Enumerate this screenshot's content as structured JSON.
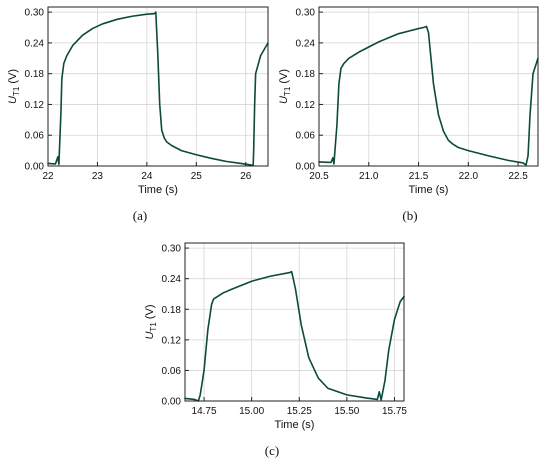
{
  "figure": {
    "panel_labels": [
      "(a)",
      "(b)",
      "(c)"
    ]
  },
  "colors": {
    "line": "#0b4a3c",
    "grid": "#d6d6d6",
    "axis": "#222222",
    "background": "#ffffff"
  },
  "chart_data": [
    {
      "type": "line",
      "panel": "(a)",
      "ylabel_main": "U",
      "ylabel_sub": "T1",
      "ylabel_unit": " (V)",
      "xlabel": "Time (s)",
      "xlim": [
        22.0,
        26.45
      ],
      "ylim": [
        0.0,
        0.31
      ],
      "xticks": [
        22,
        23,
        24,
        25,
        26
      ],
      "xtick_labels": [
        "22",
        "23",
        "24",
        "25",
        "26"
      ],
      "yticks": [
        0.0,
        0.06,
        0.12,
        0.18,
        0.24,
        0.3
      ],
      "ytick_labels": [
        "0.00",
        "0.06",
        "0.12",
        "0.18",
        "0.24",
        "0.30"
      ],
      "grid": true,
      "series": [
        {
          "x": [
            22.0,
            22.15,
            22.2,
            22.22,
            22.26,
            22.28,
            22.32,
            22.38,
            22.5,
            22.7,
            22.9,
            23.1,
            23.4,
            23.7,
            24.0,
            24.15,
            24.18,
            24.22,
            24.26,
            24.3,
            24.35,
            24.4,
            24.5,
            24.7,
            25.0,
            25.3,
            25.6,
            25.9,
            26.1,
            26.15,
            26.16,
            26.18,
            26.2,
            26.3,
            26.45
          ],
          "y": [
            0.005,
            0.004,
            0.018,
            0.003,
            0.1,
            0.17,
            0.2,
            0.215,
            0.235,
            0.255,
            0.268,
            0.277,
            0.286,
            0.292,
            0.296,
            0.297,
            0.3,
            0.22,
            0.12,
            0.07,
            0.055,
            0.047,
            0.04,
            0.03,
            0.022,
            0.015,
            0.009,
            0.005,
            0.002,
            0.001,
            0.03,
            0.12,
            0.18,
            0.215,
            0.24
          ]
        }
      ]
    },
    {
      "type": "line",
      "panel": "(b)",
      "ylabel_main": "U",
      "ylabel_sub": "T1",
      "ylabel_unit": " (V)",
      "xlabel": "Time (s)",
      "xlim": [
        20.5,
        22.7
      ],
      "ylim": [
        0.0,
        0.31
      ],
      "xticks": [
        20.5,
        21.0,
        21.5,
        22.0,
        22.5
      ],
      "xtick_labels": [
        "20.5",
        "21.0",
        "21.5",
        "22.0",
        "22.5"
      ],
      "yticks": [
        0.0,
        0.06,
        0.12,
        0.18,
        0.24,
        0.3
      ],
      "ytick_labels": [
        "0.00",
        "0.06",
        "0.12",
        "0.18",
        "0.24",
        "0.30"
      ],
      "grid": true,
      "series": [
        {
          "x": [
            20.5,
            20.62,
            20.64,
            20.65,
            20.68,
            20.7,
            20.72,
            20.75,
            20.8,
            20.9,
            21.0,
            21.1,
            21.2,
            21.3,
            21.4,
            21.5,
            21.55,
            21.58,
            21.6,
            21.62,
            21.65,
            21.7,
            21.75,
            21.8,
            21.85,
            21.9,
            22.0,
            22.2,
            22.4,
            22.55,
            22.58,
            22.6,
            22.62,
            22.65,
            22.7
          ],
          "y": [
            0.008,
            0.007,
            0.016,
            0.004,
            0.08,
            0.16,
            0.19,
            0.2,
            0.21,
            0.222,
            0.232,
            0.242,
            0.25,
            0.258,
            0.263,
            0.268,
            0.27,
            0.272,
            0.26,
            0.22,
            0.16,
            0.1,
            0.068,
            0.05,
            0.042,
            0.036,
            0.03,
            0.02,
            0.011,
            0.006,
            0.002,
            0.02,
            0.1,
            0.18,
            0.21
          ]
        }
      ]
    },
    {
      "type": "line",
      "panel": "(c)",
      "ylabel_main": "U",
      "ylabel_sub": "T1",
      "ylabel_unit": " (V)",
      "xlabel": "Time (s)",
      "xlim": [
        14.65,
        15.8
      ],
      "ylim": [
        0.0,
        0.31
      ],
      "xticks": [
        14.75,
        15.0,
        15.25,
        15.5,
        15.75
      ],
      "xtick_labels": [
        "14.75",
        "15.00",
        "15.25",
        "15.50",
        "15.75"
      ],
      "yticks": [
        0.0,
        0.06,
        0.12,
        0.18,
        0.24,
        0.3
      ],
      "ytick_labels": [
        "0.00",
        "0.06",
        "0.12",
        "0.18",
        "0.24",
        "0.30"
      ],
      "grid": true,
      "series": [
        {
          "x": [
            14.65,
            14.7,
            14.72,
            14.73,
            14.75,
            14.77,
            14.79,
            14.8,
            14.85,
            14.9,
            15.0,
            15.1,
            15.2,
            15.21,
            15.23,
            15.26,
            15.3,
            15.35,
            15.4,
            15.5,
            15.6,
            15.66,
            15.67,
            15.68,
            15.7,
            15.72,
            15.75,
            15.78,
            15.8
          ],
          "y": [
            0.005,
            0.003,
            0.0,
            0.012,
            0.06,
            0.14,
            0.19,
            0.2,
            0.212,
            0.22,
            0.235,
            0.245,
            0.252,
            0.254,
            0.22,
            0.15,
            0.085,
            0.045,
            0.025,
            0.012,
            0.006,
            0.003,
            0.018,
            0.002,
            0.04,
            0.1,
            0.16,
            0.195,
            0.205
          ]
        }
      ]
    }
  ]
}
